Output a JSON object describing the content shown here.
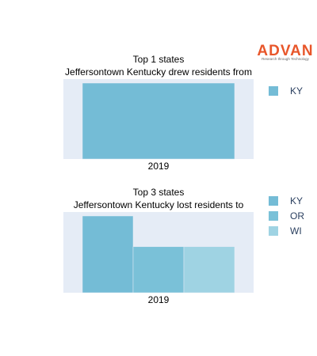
{
  "brand": {
    "name": "ADVAN",
    "tagline": "Research through Technology",
    "color": "#e8562a"
  },
  "chart_data": [
    {
      "type": "bar",
      "title_line1": "Top 1 states",
      "title_line2": "Jeffersontown Kentucky drew residents from",
      "categories": [
        "2019"
      ],
      "ylim": [
        0,
        1
      ],
      "series": [
        {
          "name": "KY",
          "values": [
            1
          ],
          "color": "#74bcd6"
        }
      ],
      "legend": "right",
      "grid": false,
      "plot_bg": "#e5ecf6"
    },
    {
      "type": "bar",
      "title_line1": "Top 3 states",
      "title_line2": "Jeffersontown Kentucky lost residents to",
      "categories": [
        "2019"
      ],
      "ylim": [
        0,
        1
      ],
      "series": [
        {
          "name": "KY",
          "values": [
            1
          ],
          "color": "#74bcd6"
        },
        {
          "name": "OR",
          "values": [
            0.6
          ],
          "color": "#7ac1d8"
        },
        {
          "name": "WI",
          "values": [
            0.6
          ],
          "color": "#9fd3e3"
        }
      ],
      "legend": "right",
      "grid": false,
      "plot_bg": "#e5ecf6"
    }
  ]
}
